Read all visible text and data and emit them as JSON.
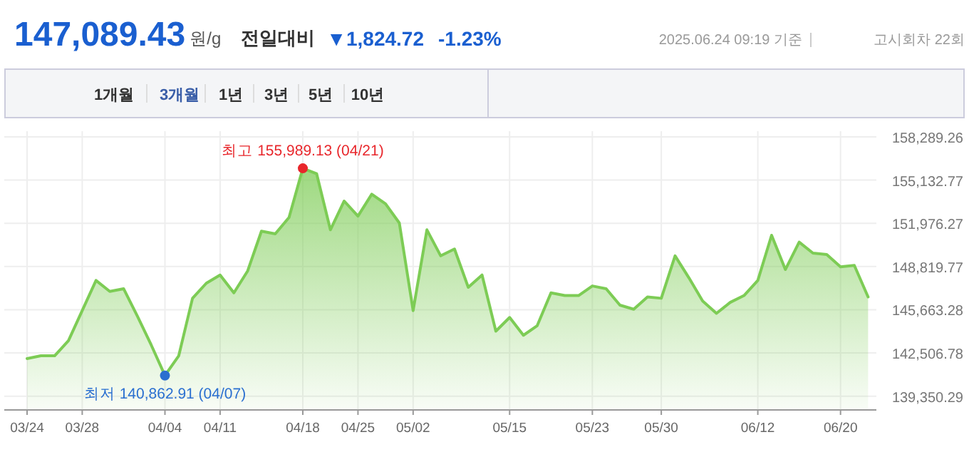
{
  "chart_data": {
    "type": "area",
    "title": "147,089.43",
    "annotations": [
      "원/g",
      "전일대비",
      "▼1,824.72",
      "-1.23%",
      "2025.06.24 09:19 기준",
      "고시회차 22회",
      "1개월",
      "3개월",
      "1년",
      "3년",
      "5년",
      "10년",
      {
        "text": "최고 155,989.13 (04/21)",
        "x": "04/18",
        "y": 155989.13
      },
      {
        "text": "최저 140,862.91 (04/07)",
        "x": "04/04",
        "y": 140862.91
      }
    ],
    "categories": [
      "03/24",
      null,
      null,
      null,
      "03/28",
      null,
      null,
      null,
      null,
      null,
      "04/04",
      null,
      null,
      null,
      "04/11",
      null,
      null,
      null,
      null,
      null,
      "04/18",
      null,
      null,
      null,
      "04/25",
      null,
      null,
      null,
      "05/02",
      null,
      null,
      null,
      null,
      null,
      null,
      "05/15",
      null,
      null,
      null,
      null,
      null,
      "05/23",
      null,
      null,
      null,
      null,
      "05/30",
      null,
      null,
      null,
      null,
      null,
      null,
      "06/12",
      null,
      null,
      null,
      null,
      null,
      "06/20",
      null,
      null
    ],
    "series": [
      {
        "color": "#7dcc55",
        "values": [
          142100,
          142300,
          142300,
          143400,
          145600,
          147800,
          147000,
          147200,
          145200,
          143100,
          140862.91,
          142300,
          146500,
          147600,
          148200,
          146900,
          148500,
          151400,
          151200,
          152400,
          155989.13,
          155600,
          151500,
          153600,
          152500,
          154100,
          153400,
          152000,
          145600,
          151500,
          149600,
          150100,
          147300,
          148200,
          144100,
          145100,
          143800,
          144500,
          146900,
          146700,
          146700,
          147400,
          147200,
          146000,
          145700,
          146600,
          146500,
          149600,
          148000,
          146300,
          145400,
          146200,
          146700,
          147800,
          151100,
          148600,
          150600,
          149800,
          149700,
          148800,
          148900,
          146600
        ]
      }
    ],
    "ylim": [
      138400,
      158700
    ],
    "yticks": [
      {
        "value": 139350.29,
        "label": "139,350.29"
      },
      {
        "value": 142506.78,
        "label": "142,506.78"
      },
      {
        "value": 145663.28,
        "label": "145,663.28"
      },
      {
        "value": 148819.77,
        "label": "148,819.77"
      },
      {
        "value": 151976.27,
        "label": "151,976.27"
      },
      {
        "value": 155132.77,
        "label": "155,132.77"
      },
      {
        "value": 158289.26,
        "label": "158,289.26"
      }
    ],
    "grid": true,
    "marker": "none"
  }
}
